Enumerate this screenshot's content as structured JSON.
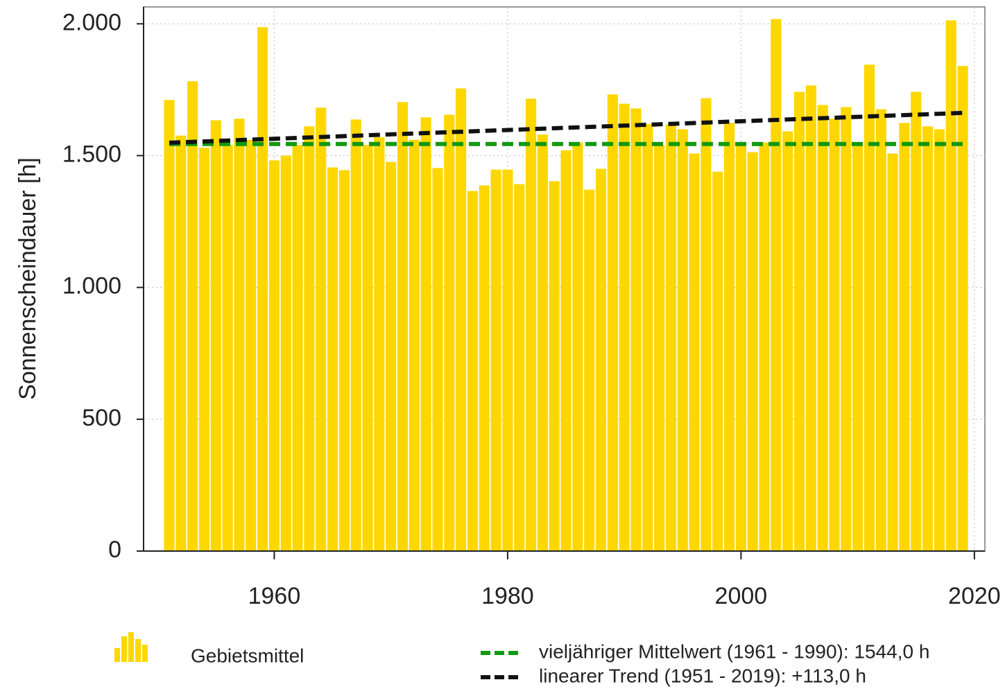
{
  "chart_data": {
    "type": "bar",
    "ylabel": "Sonnenscheindauer [h]",
    "x": [
      1951,
      1952,
      1953,
      1954,
      1955,
      1956,
      1957,
      1958,
      1959,
      1960,
      1961,
      1962,
      1963,
      1964,
      1965,
      1966,
      1967,
      1968,
      1969,
      1970,
      1971,
      1972,
      1973,
      1974,
      1975,
      1976,
      1977,
      1978,
      1979,
      1980,
      1981,
      1982,
      1983,
      1984,
      1985,
      1986,
      1987,
      1988,
      1989,
      1990,
      1991,
      1992,
      1993,
      1994,
      1995,
      1996,
      1997,
      1998,
      1999,
      2000,
      2001,
      2002,
      2003,
      2004,
      2005,
      2006,
      2007,
      2008,
      2009,
      2010,
      2011,
      2012,
      2013,
      2014,
      2015,
      2016,
      2017,
      2018,
      2019
    ],
    "series": [
      {
        "name": "Gebietsmittel",
        "color": "#ffd700",
        "values": [
          1711,
          1576,
          1782,
          1530,
          1634,
          1540,
          1640,
          1560,
          1987,
          1482,
          1500,
          1540,
          1611,
          1682,
          1455,
          1445,
          1637,
          1540,
          1570,
          1476,
          1703,
          1560,
          1645,
          1453,
          1655,
          1755,
          1366,
          1387,
          1447,
          1447,
          1392,
          1716,
          1580,
          1403,
          1520,
          1550,
          1371,
          1450,
          1732,
          1697,
          1679,
          1620,
          1540,
          1618,
          1600,
          1508,
          1718,
          1439,
          1624,
          1540,
          1513,
          1550,
          2018,
          1592,
          1742,
          1766,
          1692,
          1640,
          1684,
          1540,
          1845,
          1676,
          1508,
          1624,
          1742,
          1611,
          1600,
          2013,
          1840
        ]
      }
    ],
    "lines": [
      {
        "name": "vieljähriger Mittelwert (1961 - 1990): 1544,0 h",
        "color": "#119911",
        "x": [
          1951,
          2019
        ],
        "values": [
          1544,
          1544
        ]
      },
      {
        "name": "linearer Trend (1951 - 2019): +113,0 h",
        "color": "#111111",
        "x": [
          1951,
          2019
        ],
        "values": [
          1549,
          1662
        ]
      }
    ],
    "xlim": [
      1948.8,
      2020.9
    ],
    "xticks": [
      1960,
      1980,
      2000,
      2020
    ],
    "ylim": [
      0,
      2064
    ],
    "yticks": [
      0,
      500,
      {
        "value": 1000,
        "label": "1.000"
      },
      {
        "value": 1500,
        "label": "1.500"
      },
      {
        "value": 2000,
        "label": "2.000"
      }
    ],
    "grid": true
  }
}
